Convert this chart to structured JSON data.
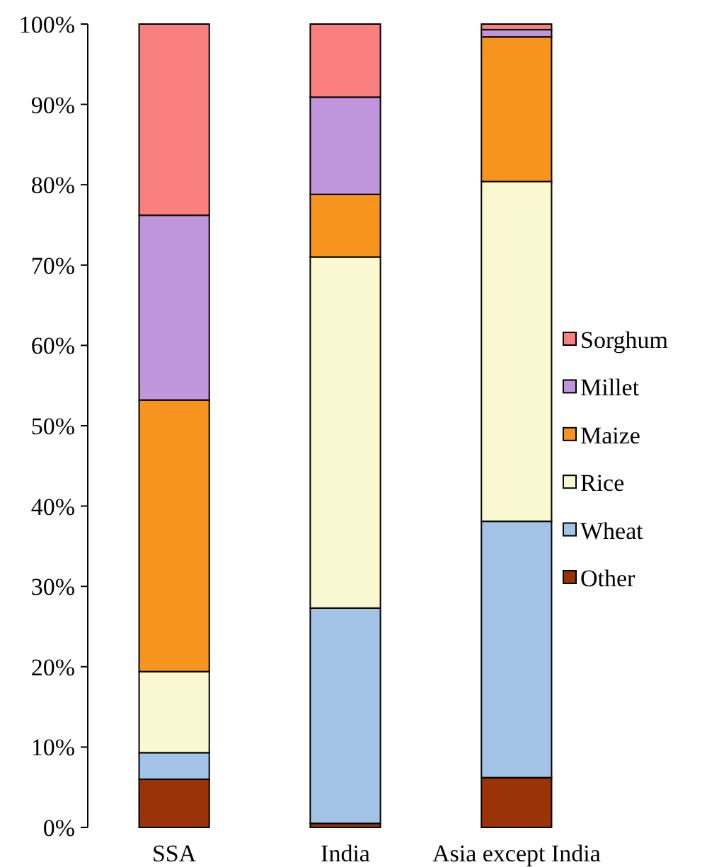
{
  "chart_data": {
    "type": "bar",
    "stacked": true,
    "categories": [
      "SSA",
      "India",
      "Asia except India"
    ],
    "series": [
      {
        "name": "Other",
        "color": "#9a3408",
        "values": [
          6.0,
          0.5,
          6.2
        ]
      },
      {
        "name": "Wheat",
        "color": "#a3c3e6",
        "values": [
          3.3,
          26.8,
          31.9
        ]
      },
      {
        "name": "Rice",
        "color": "#faf8d0",
        "values": [
          10.1,
          43.7,
          42.3
        ]
      },
      {
        "name": "Maize",
        "color": "#f7941e",
        "values": [
          33.8,
          7.8,
          18.0
        ]
      },
      {
        "name": "Millet",
        "color": "#bf96dc",
        "values": [
          23.0,
          12.1,
          0.9
        ]
      },
      {
        "name": "Sorghum",
        "color": "#fa8080",
        "values": [
          23.8,
          9.1,
          0.7
        ]
      }
    ],
    "ylim": [
      0,
      100
    ],
    "yticks": [
      {
        "value": 0,
        "label": "0%"
      },
      {
        "value": 10,
        "label": "10%"
      },
      {
        "value": 20,
        "label": "20%"
      },
      {
        "value": 30,
        "label": "30%"
      },
      {
        "value": 40,
        "label": "40%"
      },
      {
        "value": 50,
        "label": "50%"
      },
      {
        "value": 60,
        "label": "60%"
      },
      {
        "value": 70,
        "label": "70%"
      },
      {
        "value": 80,
        "label": "80%"
      },
      {
        "value": 90,
        "label": "90%"
      },
      {
        "value": 100,
        "label": "100%"
      }
    ],
    "legend": "right",
    "grid": false
  }
}
